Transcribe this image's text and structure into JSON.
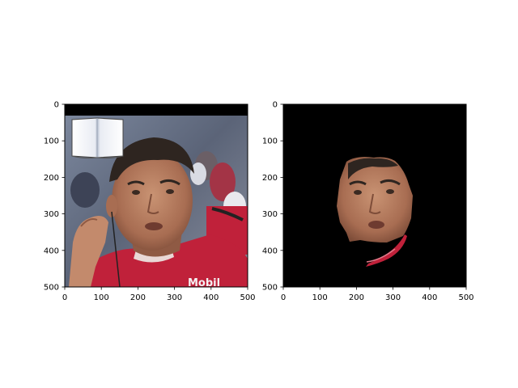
{
  "panels": [
    {
      "id": "original",
      "description": "photo of a man in red racing suit with an overlaid open-book graphic",
      "x_ticks": [
        "0",
        "100",
        "200",
        "300",
        "400",
        "500"
      ],
      "y_ticks": [
        "0",
        "100",
        "200",
        "300",
        "400",
        "500"
      ],
      "x_range": [
        0,
        500
      ],
      "y_range": [
        0,
        500
      ],
      "visible_text": "Mobil"
    },
    {
      "id": "masked-face",
      "description": "segmented face region on black background",
      "x_ticks": [
        "0",
        "100",
        "200",
        "300",
        "400",
        "500"
      ],
      "y_ticks": [
        "0",
        "100",
        "200",
        "300",
        "400",
        "500"
      ],
      "x_range": [
        0,
        500
      ],
      "y_range": [
        0,
        500
      ]
    }
  ],
  "colors": {
    "background": "#ffffff",
    "mask": "#000000",
    "suit_red": "#c0213a",
    "skin": "#b07a5e",
    "hair": "#2e2520"
  }
}
